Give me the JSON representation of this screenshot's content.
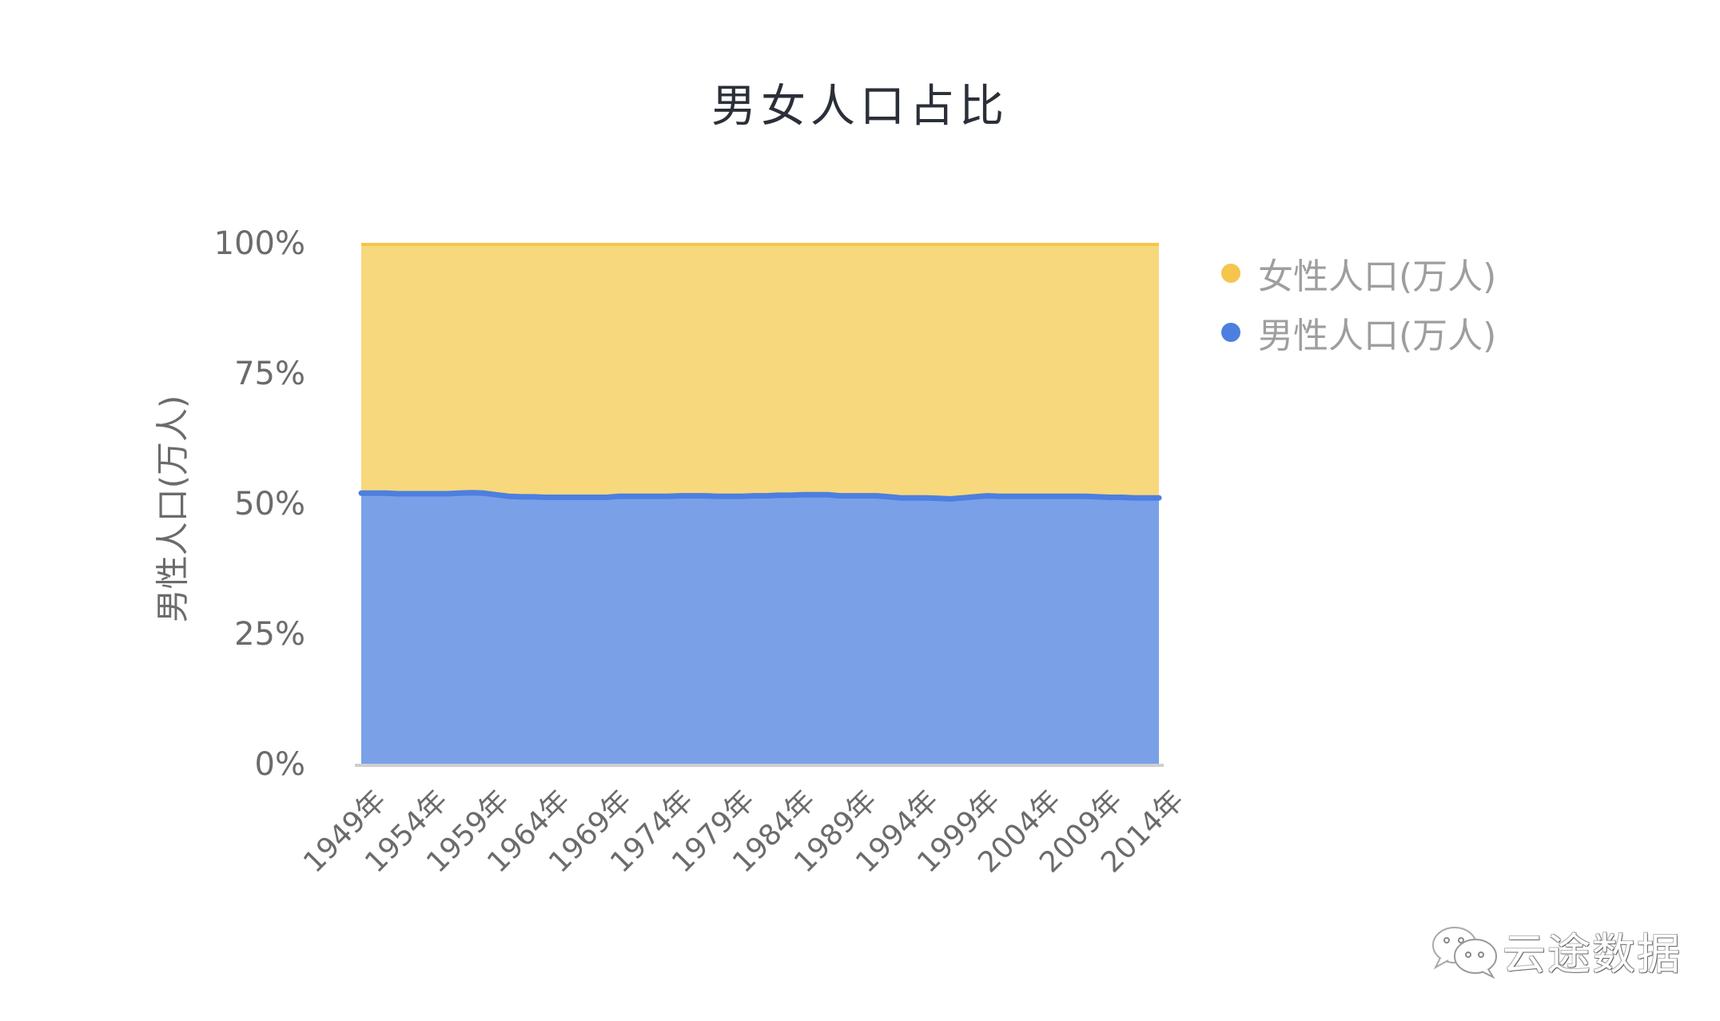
{
  "title": "男女人口占比",
  "y_axis_label": "男性人口(万人)",
  "y_ticks": [
    "100%",
    "75%",
    "50%",
    "25%",
    "0%"
  ],
  "x_ticks": [
    "1949年",
    "1954年",
    "1959年",
    "1964年",
    "1969年",
    "1974年",
    "1979年",
    "1984年",
    "1989年",
    "1994年",
    "1999年",
    "2004年",
    "2009年",
    "2014年"
  ],
  "legend": [
    {
      "label": "女性人口(万人)",
      "color": "#f5c54c"
    },
    {
      "label": "男性人口(万人)",
      "color": "#4d7fe0"
    }
  ],
  "colors": {
    "female_fill": "#f8d87c",
    "female_top": "#f5c54c",
    "male_fill": "#7aa0e8",
    "male_line": "#4d7fe0",
    "axis": "#cfcfcf"
  },
  "watermark": {
    "icon": "wechat-icon",
    "text": "云途数据"
  },
  "chart_data": {
    "type": "area",
    "stacked": "percent",
    "title": "男女人口占比",
    "xlabel": "",
    "ylabel": "男性人口(万人)",
    "ylim": [
      0,
      100
    ],
    "y_ticks": [
      0,
      25,
      50,
      75,
      100
    ],
    "legend_position": "right",
    "grid": false,
    "x": [
      1949,
      1950,
      1951,
      1952,
      1953,
      1954,
      1955,
      1956,
      1957,
      1958,
      1959,
      1960,
      1961,
      1962,
      1963,
      1964,
      1965,
      1966,
      1967,
      1968,
      1969,
      1970,
      1971,
      1972,
      1973,
      1974,
      1975,
      1976,
      1977,
      1978,
      1979,
      1980,
      1981,
      1982,
      1983,
      1984,
      1985,
      1986,
      1987,
      1988,
      1989,
      1990,
      1991,
      1992,
      1993,
      1994,
      1995,
      1996,
      1997,
      1998,
      1999,
      2000,
      2001,
      2002,
      2003,
      2004,
      2005,
      2006,
      2007,
      2008,
      2009,
      2010,
      2011,
      2012,
      2013,
      2014
    ],
    "x_tick_labels": [
      "1949年",
      "1954年",
      "1959年",
      "1964年",
      "1969年",
      "1974年",
      "1979年",
      "1984年",
      "1989年",
      "1994年",
      "1999年",
      "2004年",
      "2009年",
      "2014年"
    ],
    "series": [
      {
        "name": "男性人口(万人)",
        "share_pct": [
          52.1,
          52.1,
          52.1,
          52.0,
          52.0,
          52.0,
          52.0,
          52.0,
          52.1,
          52.2,
          52.1,
          51.8,
          51.5,
          51.4,
          51.4,
          51.3,
          51.3,
          51.3,
          51.3,
          51.3,
          51.3,
          51.5,
          51.5,
          51.5,
          51.5,
          51.5,
          51.6,
          51.6,
          51.6,
          51.5,
          51.5,
          51.5,
          51.6,
          51.6,
          51.7,
          51.7,
          51.8,
          51.8,
          51.8,
          51.6,
          51.6,
          51.6,
          51.6,
          51.4,
          51.2,
          51.2,
          51.2,
          51.1,
          51.0,
          51.2,
          51.4,
          51.6,
          51.5,
          51.5,
          51.5,
          51.5,
          51.5,
          51.5,
          51.5,
          51.5,
          51.4,
          51.3,
          51.3,
          51.2,
          51.2,
          51.2
        ]
      },
      {
        "name": "女性人口(万人)",
        "share_pct": [
          47.9,
          47.9,
          47.9,
          48.0,
          48.0,
          48.0,
          48.0,
          48.0,
          47.9,
          47.8,
          47.9,
          48.2,
          48.5,
          48.6,
          48.6,
          48.7,
          48.7,
          48.7,
          48.7,
          48.7,
          48.7,
          48.5,
          48.5,
          48.5,
          48.5,
          48.5,
          48.4,
          48.4,
          48.4,
          48.5,
          48.5,
          48.5,
          48.4,
          48.4,
          48.3,
          48.3,
          48.2,
          48.2,
          48.2,
          48.4,
          48.4,
          48.4,
          48.4,
          48.6,
          48.8,
          48.8,
          48.8,
          48.9,
          49.0,
          48.8,
          48.6,
          48.4,
          48.5,
          48.5,
          48.5,
          48.5,
          48.5,
          48.5,
          48.5,
          48.5,
          48.6,
          48.7,
          48.7,
          48.8,
          48.8,
          48.8
        ]
      }
    ]
  }
}
